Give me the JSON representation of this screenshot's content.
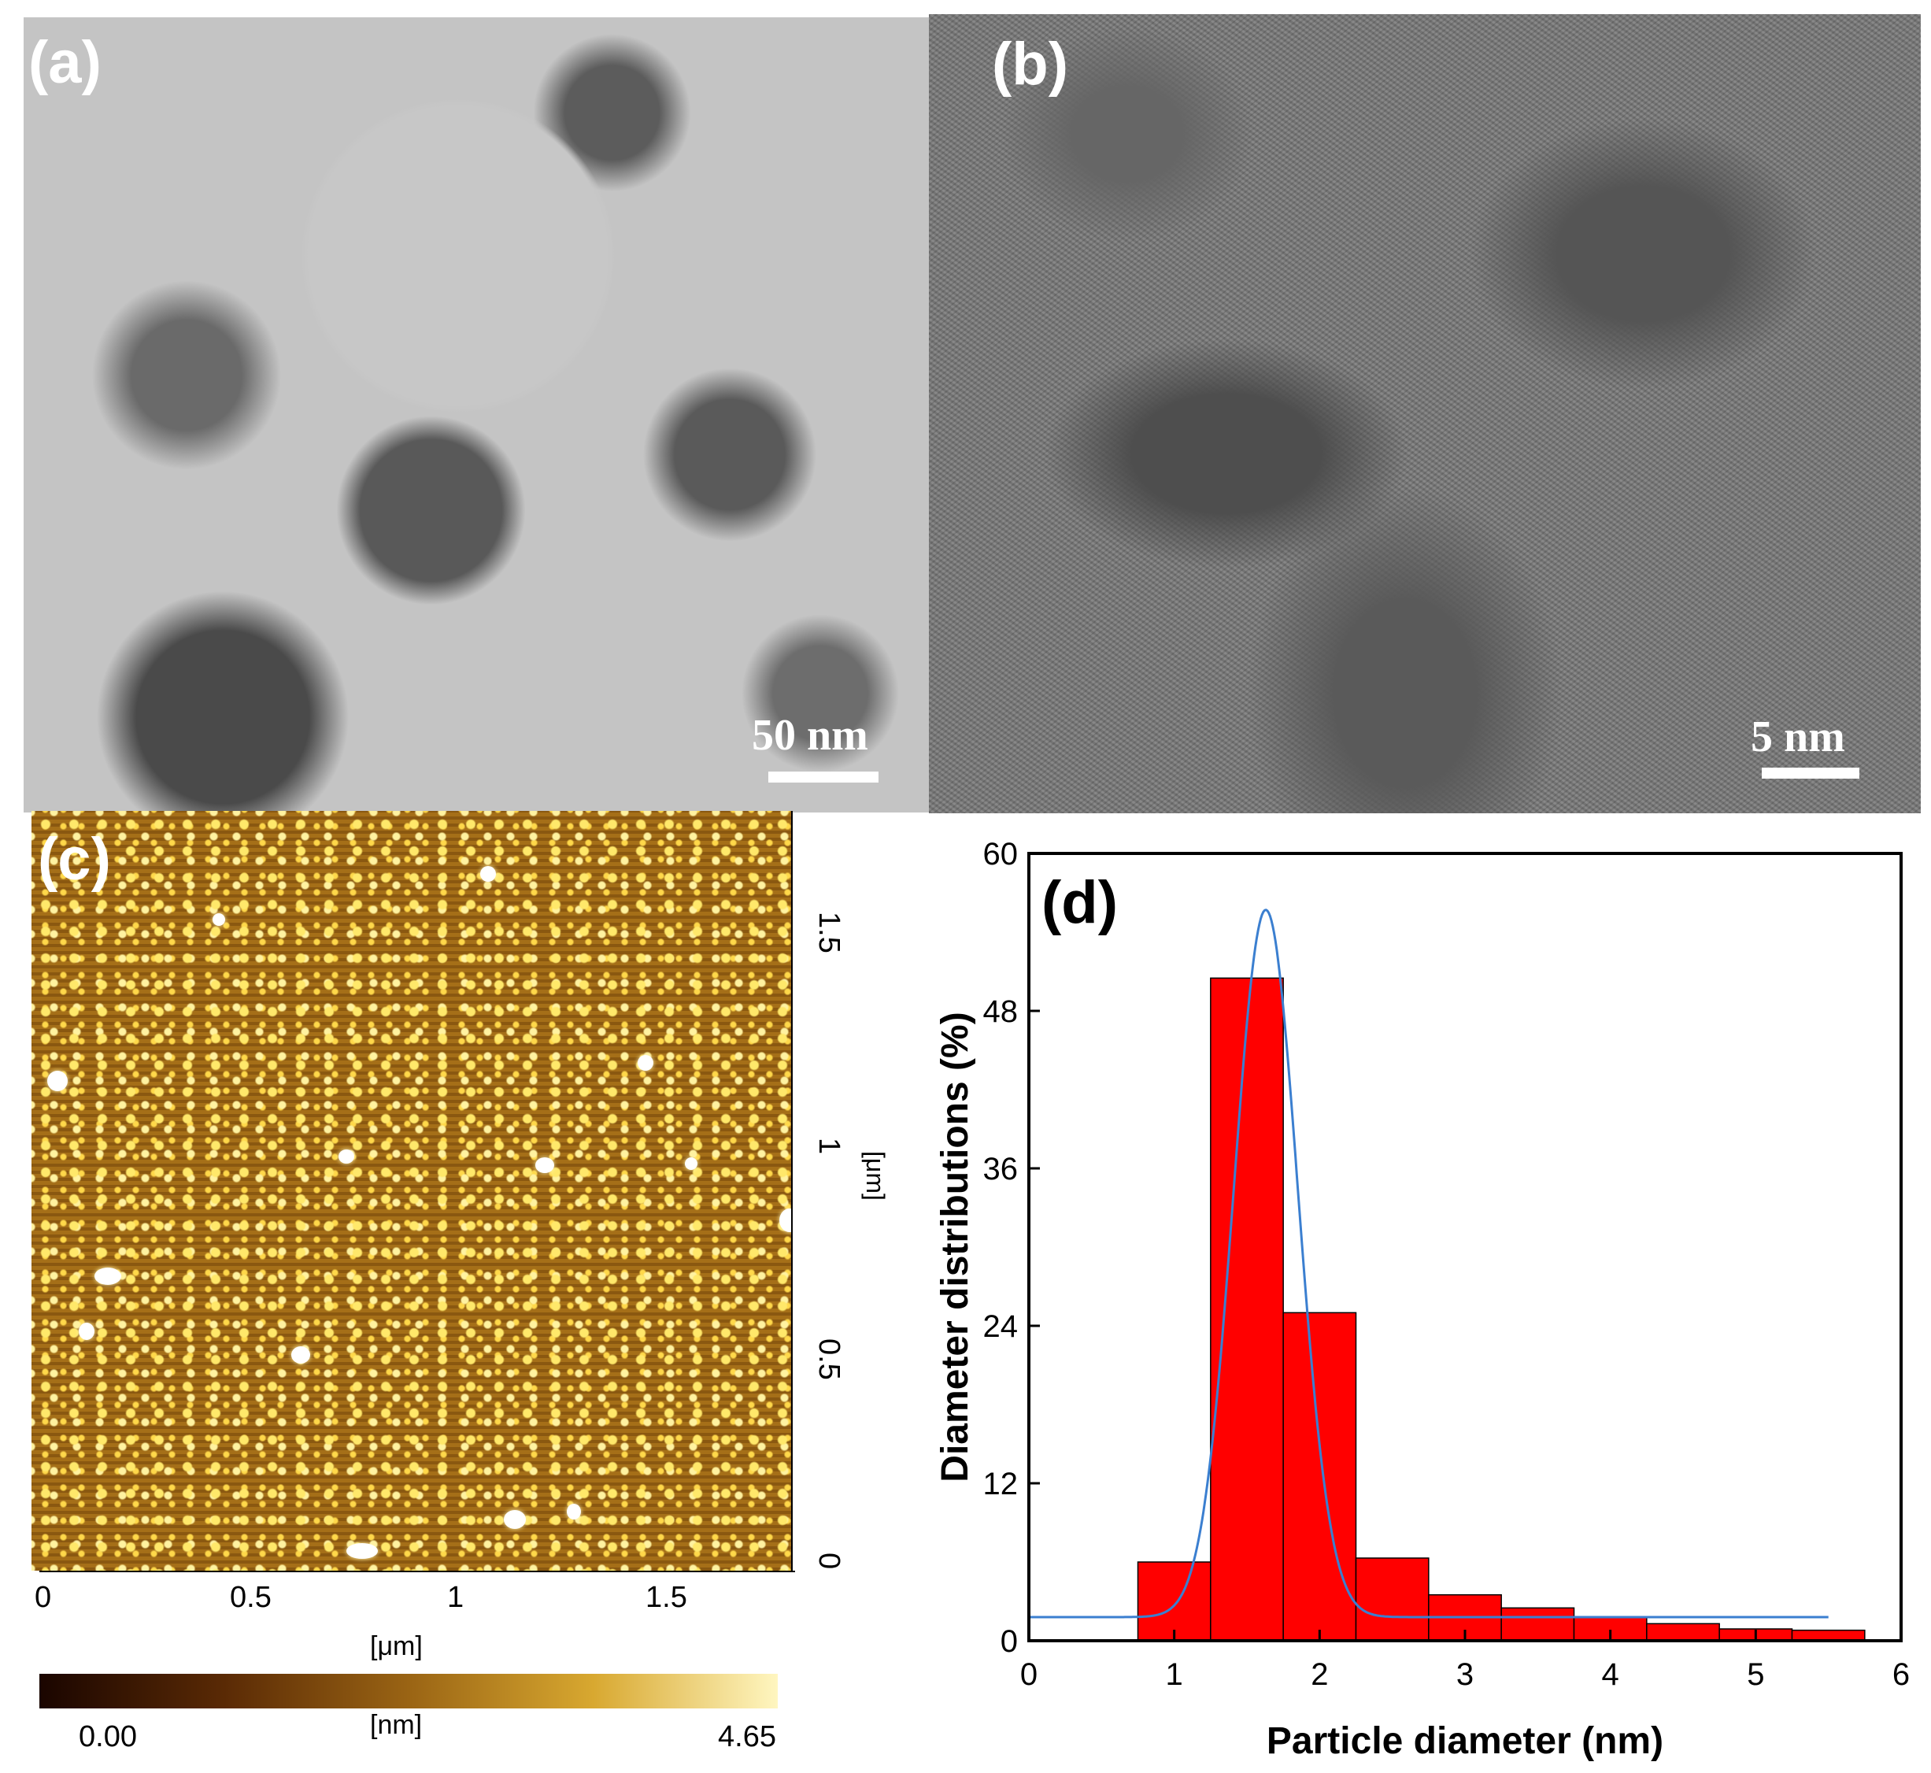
{
  "panels": {
    "a": {
      "label": "(a)",
      "scale": "50 nm"
    },
    "b": {
      "label": "(b)",
      "scale": "5 nm"
    },
    "c": {
      "label": "(c)",
      "x_ticks": [
        "0",
        "0.5",
        "1",
        "1.5"
      ],
      "x_unit": "[μm]",
      "y_ticks": [
        "0",
        "0.5",
        "1",
        "1.5"
      ],
      "y_unit": "[μm]",
      "colorbar": {
        "min": "0.00",
        "max": "4.65",
        "unit": "[nm]"
      }
    },
    "d": {
      "label": "(d)"
    }
  },
  "chart_data": {
    "type": "bar",
    "panel_label": "(d)",
    "xlabel": "Particle diameter   (nm)",
    "ylabel": "Diameter distributions   (%)",
    "xlim": [
      0,
      6
    ],
    "ylim": [
      0,
      60
    ],
    "xticks": [
      0,
      1,
      2,
      3,
      4,
      5,
      6
    ],
    "yticks": [
      0,
      12,
      24,
      36,
      48,
      60
    ],
    "bins": [
      {
        "x0": 0.75,
        "x1": 1.25,
        "value": 6.0
      },
      {
        "x0": 1.25,
        "x1": 1.75,
        "value": 50.5
      },
      {
        "x0": 1.75,
        "x1": 2.25,
        "value": 25.0
      },
      {
        "x0": 2.25,
        "x1": 2.75,
        "value": 6.3
      },
      {
        "x0": 2.75,
        "x1": 3.25,
        "value": 3.5
      },
      {
        "x0": 3.25,
        "x1": 3.75,
        "value": 2.5
      },
      {
        "x0": 3.75,
        "x1": 4.25,
        "value": 1.8
      },
      {
        "x0": 4.25,
        "x1": 4.75,
        "value": 1.3
      },
      {
        "x0": 4.75,
        "x1": 5.25,
        "value": 0.9
      },
      {
        "x0": 5.25,
        "x1": 5.75,
        "value": 0.8
      }
    ],
    "fit": {
      "type": "gaussian",
      "x0": 1.63,
      "peak": 55.7,
      "baseline": 1.8,
      "width": 0.22,
      "xmax": 5.5
    },
    "bar_color": "#ff0000",
    "fit_color": "#3b7fd0"
  }
}
